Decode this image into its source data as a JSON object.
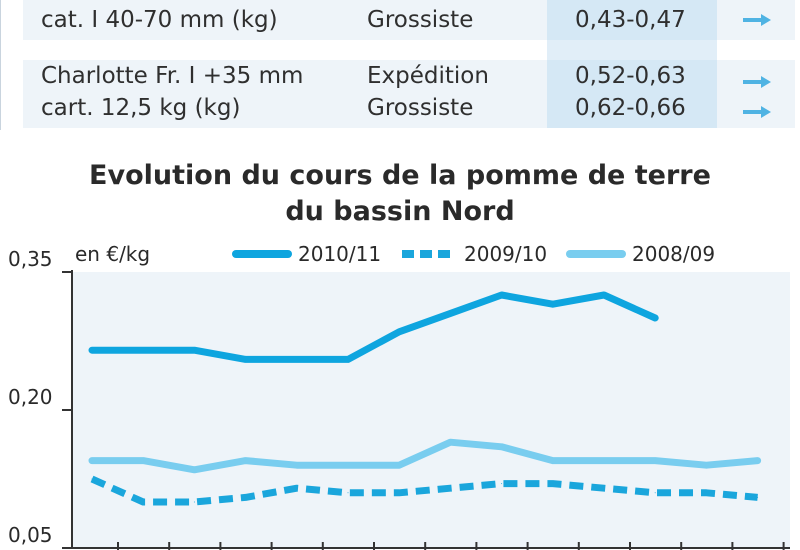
{
  "table": {
    "rows": [
      {
        "product_lines": [
          "cat. I 40-70 mm (kg)"
        ],
        "stages": [
          "Grossiste"
        ],
        "prices": [
          "0,43-0,47"
        ],
        "trends": [
          "arrow-right-icon"
        ]
      },
      {
        "product_lines": [
          "Charlotte Fr. I +35 mm",
          "cart. 12,5 kg (kg)"
        ],
        "stages": [
          "Expédition",
          "Grossiste"
        ],
        "prices": [
          "0,52-0,63",
          "0,62-0,66"
        ],
        "trends": [
          "arrow-right-icon",
          "arrow-right-icon"
        ]
      }
    ],
    "colors": {
      "row_bg": "#eef4f9",
      "price_bg": "#d5e8f5",
      "arrow": "#4fb3e3"
    }
  },
  "chart_data": {
    "type": "line",
    "title": "Evolution du cours de la pomme de terre du bassin Nord",
    "title_lines": [
      "Evolution du cours de la pomme de terre",
      "du bassin Nord"
    ],
    "ylabel": "en €/kg",
    "ylim": [
      0.05,
      0.35
    ],
    "yticks": [
      "0,35",
      "0,20",
      "0,05"
    ],
    "ytick_values": [
      0.35,
      0.2,
      0.05
    ],
    "x_ticks_count": 14,
    "legend_position": "top",
    "grid": false,
    "series": [
      {
        "name": "2010/11",
        "style": "solid-thick",
        "color": "#0ea5df",
        "values": [
          0.265,
          0.265,
          0.265,
          0.255,
          0.255,
          0.255,
          0.285,
          0.305,
          0.325,
          0.315,
          0.325,
          0.3
        ]
      },
      {
        "name": "2009/10",
        "style": "dashed",
        "color": "#1aa6dc",
        "values": [
          0.125,
          0.1,
          0.1,
          0.105,
          0.115,
          0.11,
          0.11,
          0.115,
          0.12,
          0.12,
          0.115,
          0.11,
          0.11,
          0.105
        ]
      },
      {
        "name": "2008/09",
        "style": "solid-light",
        "color": "#79cdef",
        "values": [
          0.145,
          0.145,
          0.135,
          0.145,
          0.14,
          0.14,
          0.14,
          0.165,
          0.16,
          0.145,
          0.145,
          0.145,
          0.14,
          0.145
        ]
      }
    ]
  }
}
